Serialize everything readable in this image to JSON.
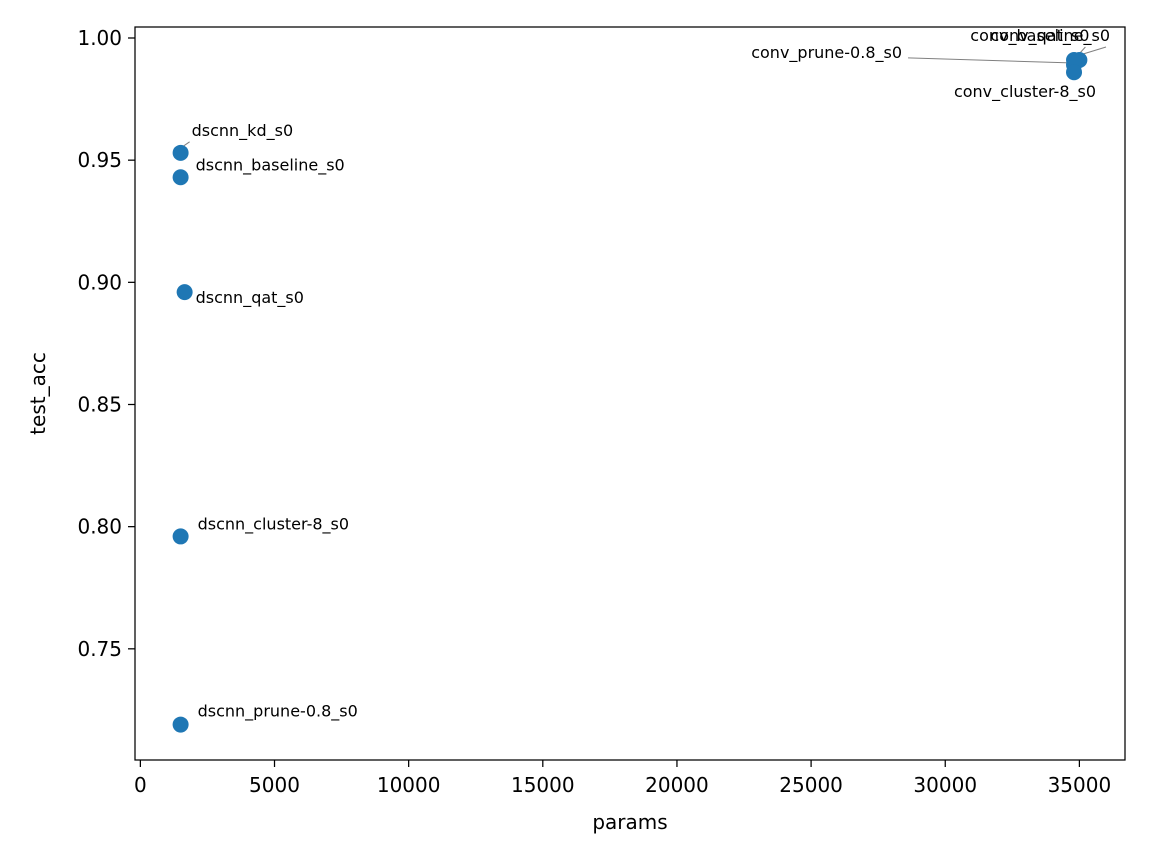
{
  "chart_data": {
    "type": "scatter",
    "title": "",
    "xlabel": "params",
    "ylabel": "test_acc",
    "xlim": [
      -200,
      36700
    ],
    "ylim": [
      0.7045,
      1.0045
    ],
    "grid": false,
    "legend": "none",
    "point_color": "#1f77b4",
    "x_ticks": [
      {
        "value": 0,
        "label": "0"
      },
      {
        "value": 5000,
        "label": "5000"
      },
      {
        "value": 10000,
        "label": "10000"
      },
      {
        "value": 15000,
        "label": "15000"
      },
      {
        "value": 20000,
        "label": "20000"
      },
      {
        "value": 25000,
        "label": "25000"
      },
      {
        "value": 30000,
        "label": "30000"
      },
      {
        "value": 35000,
        "label": "35000"
      }
    ],
    "y_ticks": [
      {
        "value": 0.75,
        "label": "0.75"
      },
      {
        "value": 0.8,
        "label": "0.80"
      },
      {
        "value": 0.85,
        "label": "0.85"
      },
      {
        "value": 0.9,
        "label": "0.90"
      },
      {
        "value": 0.95,
        "label": "0.95"
      },
      {
        "value": 1.0,
        "label": "1.00"
      }
    ],
    "points": [
      {
        "name": "dscnn_kd_s0",
        "x": 1500,
        "y": 0.953
      },
      {
        "name": "dscnn_baseline_s0",
        "x": 1500,
        "y": 0.943
      },
      {
        "name": "dscnn_qat_s0",
        "x": 1650,
        "y": 0.896
      },
      {
        "name": "dscnn_cluster-8_s0",
        "x": 1500,
        "y": 0.796
      },
      {
        "name": "dscnn_prune-0.8_s0",
        "x": 1500,
        "y": 0.719
      },
      {
        "name": "conv_qat_s0",
        "x": 35000,
        "y": 0.991
      },
      {
        "name": "conv_baseline_s0",
        "x": 34800,
        "y": 0.991
      },
      {
        "name": "conv_prune-0.8_s0",
        "x": 34800,
        "y": 0.989
      },
      {
        "name": "conv_cluster-8_s0",
        "x": 34800,
        "y": 0.986
      }
    ]
  }
}
